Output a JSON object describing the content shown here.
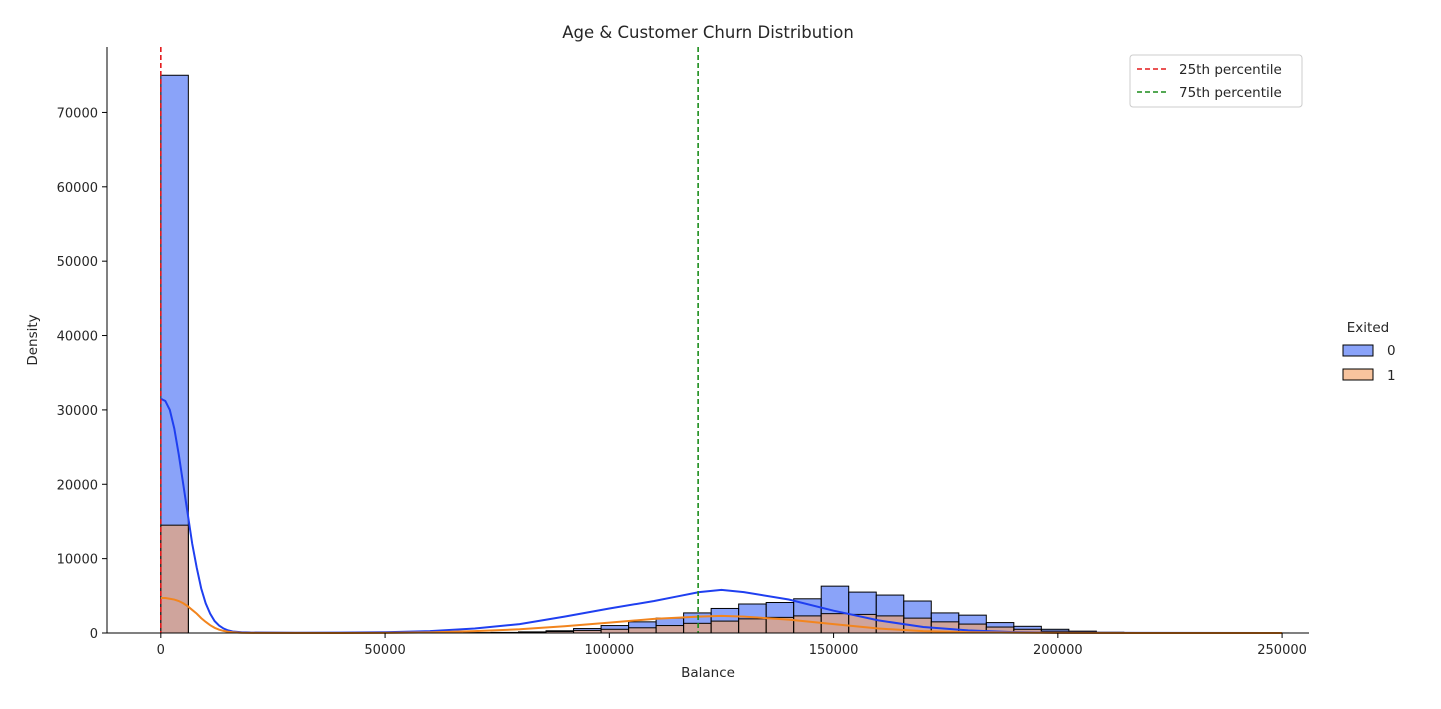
{
  "chart_data": {
    "type": "bar",
    "title": "Age & Customer Churn Distribution",
    "xlabel": "Balance",
    "ylabel": "Density",
    "xlim": [
      -12000,
      256000
    ],
    "ylim": [
      0,
      78800
    ],
    "x_ticks": [
      0,
      50000,
      100000,
      150000,
      200000,
      250000
    ],
    "x_tick_labels": [
      "0",
      "50000",
      "100000",
      "150000",
      "200000",
      "250000"
    ],
    "y_ticks": [
      0,
      10000,
      20000,
      30000,
      40000,
      50000,
      60000,
      70000
    ],
    "y_tick_labels": [
      "0",
      "10000",
      "20000",
      "30000",
      "40000",
      "50000",
      "60000",
      "70000"
    ],
    "grid": false,
    "bin_start": 0,
    "bin_width": 6135,
    "series": [
      {
        "name": "0",
        "color": "#4c72f6",
        "kde_color": "#1f3ff0",
        "counts": [
          75000,
          0,
          0,
          0,
          0,
          0,
          0,
          0,
          0,
          0,
          0,
          50,
          80,
          150,
          300,
          600,
          1000,
          1500,
          2000,
          2700,
          3300,
          3900,
          4100,
          4600,
          6300,
          5500,
          5100,
          4300,
          2700,
          2400,
          1400,
          900,
          500,
          250,
          100,
          50,
          30,
          20,
          10,
          5,
          3
        ],
        "kde": [
          [
            0,
            31500
          ],
          [
            1000,
            31200
          ],
          [
            2000,
            30000
          ],
          [
            3000,
            27500
          ],
          [
            4000,
            24000
          ],
          [
            5000,
            20000
          ],
          [
            6000,
            16000
          ],
          [
            7000,
            12000
          ],
          [
            8000,
            8800
          ],
          [
            9000,
            6000
          ],
          [
            10000,
            4000
          ],
          [
            11000,
            2600
          ],
          [
            12000,
            1600
          ],
          [
            13000,
            1000
          ],
          [
            14000,
            600
          ],
          [
            15000,
            350
          ],
          [
            16000,
            200
          ],
          [
            18000,
            100
          ],
          [
            20000,
            60
          ],
          [
            30000,
            40
          ],
          [
            40000,
            50
          ],
          [
            50000,
            100
          ],
          [
            60000,
            250
          ],
          [
            70000,
            600
          ],
          [
            80000,
            1200
          ],
          [
            90000,
            2200
          ],
          [
            100000,
            3300
          ],
          [
            110000,
            4300
          ],
          [
            115000,
            4900
          ],
          [
            120000,
            5500
          ],
          [
            125000,
            5800
          ],
          [
            130000,
            5500
          ],
          [
            140000,
            4500
          ],
          [
            150000,
            3000
          ],
          [
            160000,
            1700
          ],
          [
            170000,
            800
          ],
          [
            180000,
            350
          ],
          [
            190000,
            120
          ],
          [
            200000,
            40
          ],
          [
            220000,
            10
          ],
          [
            250000,
            3
          ]
        ]
      },
      {
        "name": "1",
        "color": "#f5a56a",
        "kde_color": "#f2851e",
        "counts": [
          14500,
          0,
          0,
          0,
          0,
          0,
          0,
          0,
          0,
          0,
          0,
          30,
          60,
          100,
          200,
          350,
          500,
          700,
          1000,
          1300,
          1600,
          1900,
          2100,
          2300,
          2600,
          2500,
          2300,
          2000,
          1500,
          1200,
          800,
          500,
          250,
          120,
          50,
          20,
          10,
          5,
          3,
          2,
          1
        ],
        "kde": [
          [
            0,
            4700
          ],
          [
            1000,
            4700
          ],
          [
            2000,
            4600
          ],
          [
            3000,
            4500
          ],
          [
            4000,
            4300
          ],
          [
            5000,
            4000
          ],
          [
            6000,
            3600
          ],
          [
            7000,
            3100
          ],
          [
            8000,
            2600
          ],
          [
            9000,
            2000
          ],
          [
            10000,
            1500
          ],
          [
            11000,
            1050
          ],
          [
            12000,
            700
          ],
          [
            13000,
            450
          ],
          [
            14000,
            280
          ],
          [
            15000,
            170
          ],
          [
            16000,
            100
          ],
          [
            18000,
            40
          ],
          [
            20000,
            15
          ],
          [
            40000,
            8
          ],
          [
            50000,
            20
          ],
          [
            60000,
            80
          ],
          [
            70000,
            250
          ],
          [
            80000,
            500
          ],
          [
            90000,
            900
          ],
          [
            100000,
            1400
          ],
          [
            110000,
            1900
          ],
          [
            120000,
            2200
          ],
          [
            125000,
            2300
          ],
          [
            130000,
            2200
          ],
          [
            140000,
            1800
          ],
          [
            150000,
            1200
          ],
          [
            160000,
            600
          ],
          [
            170000,
            250
          ],
          [
            180000,
            100
          ],
          [
            200000,
            20
          ],
          [
            220000,
            5
          ],
          [
            250000,
            1
          ]
        ]
      }
    ],
    "vlines": [
      {
        "x": 0,
        "label": "25th percentile",
        "color": "#e31a1c"
      },
      {
        "x": 119800,
        "label": "75th percentile",
        "color": "#1a8c1a"
      }
    ],
    "legend_top_right": {
      "placement": "top-right"
    },
    "legend_hue": {
      "title": "Exited",
      "placement": "right",
      "entries": [
        "0",
        "1"
      ]
    }
  }
}
